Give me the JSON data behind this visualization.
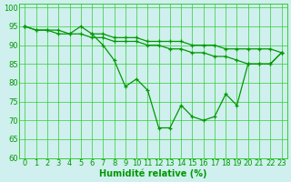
{
  "title": "",
  "xlabel": "Humidité relative (%)",
  "ylabel": "",
  "bg_color": "#cff0ee",
  "grid_color": "#33cc33",
  "line_color": "#009900",
  "x_values": [
    0,
    1,
    2,
    3,
    4,
    5,
    6,
    7,
    8,
    9,
    10,
    11,
    12,
    13,
    14,
    15,
    16,
    17,
    18,
    19,
    20,
    21,
    22,
    23
  ],
  "line1": [
    95,
    94,
    94,
    94,
    93,
    95,
    93,
    93,
    92,
    92,
    92,
    91,
    91,
    91,
    91,
    90,
    90,
    90,
    89,
    89,
    89,
    89,
    89,
    88
  ],
  "line2": [
    95,
    94,
    94,
    93,
    93,
    93,
    92,
    92,
    91,
    91,
    91,
    90,
    90,
    89,
    89,
    88,
    88,
    87,
    87,
    86,
    85,
    85,
    85,
    88
  ],
  "line3": [
    95,
    null,
    null,
    null,
    null,
    null,
    93,
    90,
    86,
    79,
    81,
    78,
    68,
    68,
    74,
    71,
    70,
    71,
    77,
    74,
    85,
    85,
    85,
    88
  ],
  "ylim": [
    60,
    101
  ],
  "xlim": [
    -0.5,
    23.5
  ],
  "yticks": [
    60,
    65,
    70,
    75,
    80,
    85,
    90,
    95,
    100
  ],
  "xticks": [
    0,
    1,
    2,
    3,
    4,
    5,
    6,
    7,
    8,
    9,
    10,
    11,
    12,
    13,
    14,
    15,
    16,
    17,
    18,
    19,
    20,
    21,
    22,
    23
  ],
  "xlabel_fontsize": 7,
  "tick_fontsize": 6,
  "linewidth": 0.9,
  "markersize": 3.5,
  "markeredgewidth": 0.9
}
